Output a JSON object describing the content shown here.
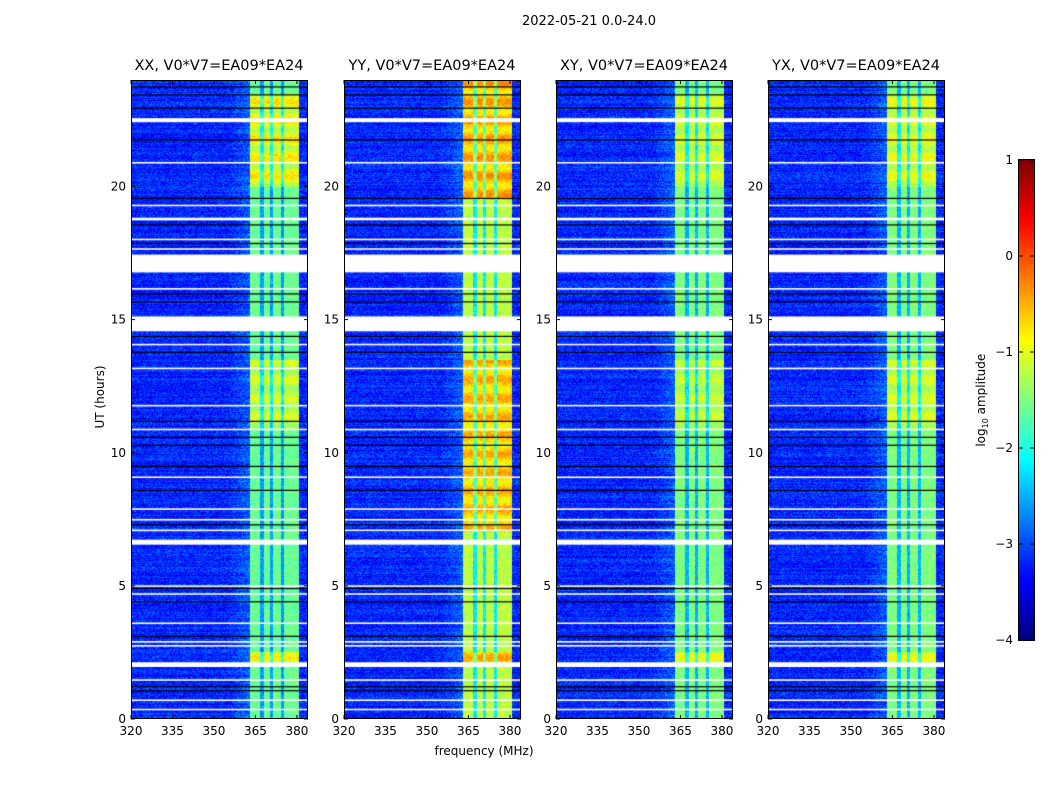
{
  "chart_data": {
    "type": "heatmap",
    "title": "2022-05-21 0.0-24.0",
    "xlabel": "frequency (MHz)",
    "ylabel": "UT (hours)",
    "xlim": [
      320,
      384
    ],
    "ylim": [
      0,
      24
    ],
    "xticks": [
      320,
      335,
      350,
      365,
      380
    ],
    "yticks": [
      0,
      5,
      10,
      15,
      20
    ],
    "panels": [
      {
        "title": "XX, V0*V7=EA09*EA24",
        "band_level": -1.6,
        "bright_periods": [
          [
            20.0,
            23.5,
            0.9
          ],
          [
            10.9,
            13.5,
            0.6
          ],
          [
            2.1,
            2.5,
            0.8
          ]
        ]
      },
      {
        "title": "YY, V0*V7=EA09*EA24",
        "band_level": -1.2,
        "bright_periods": [
          [
            19.5,
            24.0,
            0.9
          ],
          [
            7.0,
            13.5,
            0.8
          ],
          [
            2.1,
            2.5,
            0.8
          ]
        ]
      },
      {
        "title": "XY, V0*V7=EA09*EA24",
        "band_level": -1.5,
        "bright_periods": [
          [
            20.0,
            23.5,
            0.5
          ],
          [
            10.9,
            13.5,
            0.4
          ],
          [
            2.1,
            2.5,
            0.6
          ]
        ]
      },
      {
        "title": "YX, V0*V7=EA09*EA24",
        "band_level": -1.5,
        "bright_periods": [
          [
            20.0,
            23.5,
            0.6
          ],
          [
            10.9,
            13.5,
            0.5
          ],
          [
            2.1,
            2.5,
            0.6
          ]
        ]
      }
    ],
    "background_level": -3.2,
    "rfi_band_mhz": [
      363,
      381
    ],
    "band_notches_mhz": [
      367.5,
      371.0,
      375.0
    ],
    "flagged_hours": [
      [
        16.79,
        17.46
      ],
      [
        14.57,
        15.13
      ],
      [
        6.53,
        6.72
      ],
      [
        1.92,
        2.1
      ],
      [
        22.45,
        22.6
      ],
      [
        18.75,
        18.85
      ]
    ],
    "flag_lines_hours": [
      20.95,
      19.34,
      18.06,
      17.7,
      16.2,
      14.1,
      13.2,
      11.8,
      10.9,
      9.1,
      7.9,
      7.5,
      7.1,
      5.0,
      4.7,
      3.6,
      2.9,
      2.75,
      1.46,
      0.7,
      0.35
    ],
    "black_lines_hours": [
      23.8,
      23.5,
      23.0,
      21.8,
      19.6,
      18.6,
      17.9,
      16.0,
      15.7,
      14.4,
      13.8,
      11.2,
      10.6,
      10.3,
      9.5,
      8.6,
      7.3,
      4.9,
      4.4,
      3.1,
      1.2,
      1.05
    ],
    "colorbar": {
      "label": "log10 amplitude",
      "label_main": "log",
      "label_sub": "10",
      "label_rest": " amplitude",
      "range": [
        -4,
        1
      ],
      "ticks": [
        1,
        0,
        -1,
        -2,
        -3,
        -4
      ],
      "tick_labels": [
        "1",
        "0",
        "−1",
        "−2",
        "−3",
        "−4"
      ],
      "colormap": "jet"
    }
  }
}
